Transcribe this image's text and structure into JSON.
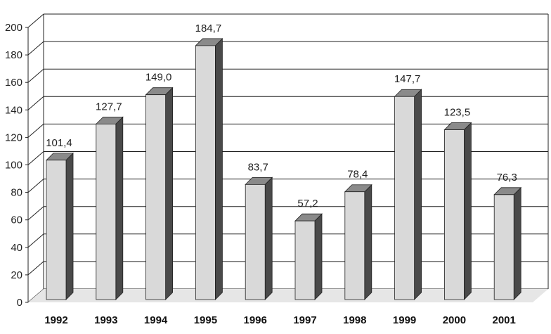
{
  "chart_data": {
    "type": "bar",
    "title": "",
    "xlabel": "",
    "ylabel": "",
    "categories": [
      "1992",
      "1993",
      "1994",
      "1995",
      "1996",
      "1997",
      "1998",
      "1999",
      "2000",
      "2001"
    ],
    "values": [
      101.4,
      127.7,
      149.0,
      184.7,
      83.7,
      57.2,
      78.4,
      147.7,
      123.5,
      76.3
    ],
    "data_labels": [
      "101,4",
      "127,7",
      "149,0",
      "184,7",
      "83,7",
      "57,2",
      "78,4",
      "147,7",
      "123,5",
      "76,3"
    ],
    "ylim": [
      0,
      200
    ],
    "yticks": [
      0,
      20,
      40,
      60,
      80,
      100,
      120,
      140,
      160,
      180,
      200
    ],
    "grid": true,
    "style": "3d-column",
    "colors": {
      "bar_front": "#d9d9d9",
      "bar_side": "#4a4a4a",
      "bar_top": "#8a8a8a",
      "floor": "#e6e6e6"
    }
  }
}
